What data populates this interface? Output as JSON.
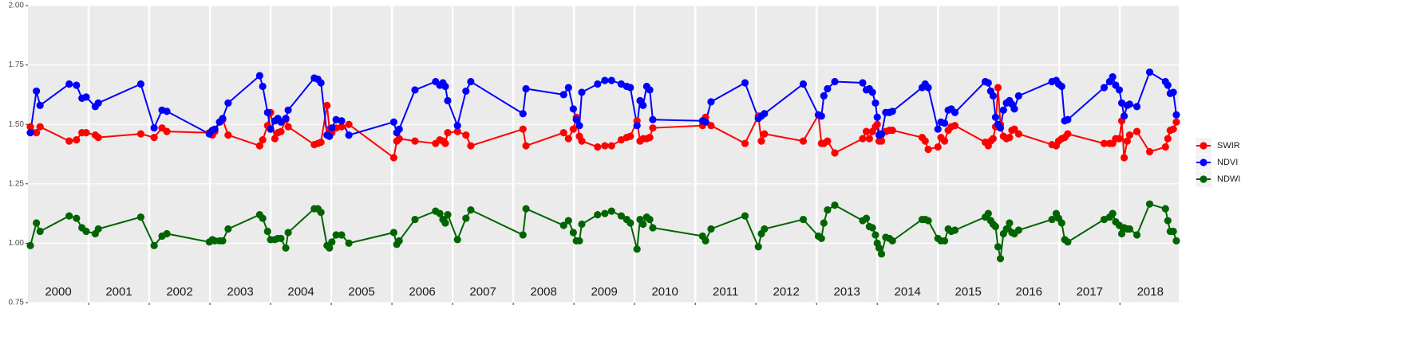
{
  "chart_data": {
    "type": "line",
    "x": [
      2000.04,
      2000.14,
      2000.2,
      2000.68,
      2000.8,
      2000.89,
      2000.96,
      2001.11,
      2001.16,
      2001.86,
      2002.08,
      2002.21,
      2002.29,
      2002.99,
      2003.04,
      2003.08,
      2003.16,
      2003.21,
      2003.3,
      2003.82,
      2003.87,
      2003.95,
      2004.0,
      2004.07,
      2004.12,
      2004.17,
      2004.25,
      2004.29,
      2004.72,
      2004.78,
      2004.83,
      2004.93,
      2004.97,
      2005.01,
      2005.08,
      2005.17,
      2005.29,
      2006.03,
      2006.08,
      2006.12,
      2006.38,
      2006.72,
      2006.79,
      2006.84,
      2006.88,
      2006.92,
      2007.08,
      2007.22,
      2007.3,
      2008.16,
      2008.21,
      2008.83,
      2008.91,
      2008.99,
      2009.04,
      2009.09,
      2009.13,
      2009.39,
      2009.51,
      2009.62,
      2009.78,
      2009.87,
      2009.93,
      2010.04,
      2010.09,
      2010.14,
      2010.2,
      2010.25,
      2010.3,
      2011.12,
      2011.17,
      2011.26,
      2011.82,
      2012.04,
      2012.09,
      2012.14,
      2012.78,
      2013.03,
      2013.08,
      2013.12,
      2013.18,
      2013.3,
      2013.76,
      2013.82,
      2013.87,
      2013.92,
      2013.97,
      2014.0,
      2014.03,
      2014.07,
      2014.14,
      2014.2,
      2014.25,
      2014.74,
      2014.79,
      2014.84,
      2015.0,
      2015.05,
      2015.11,
      2015.17,
      2015.22,
      2015.28,
      2015.78,
      2015.83,
      2015.87,
      2015.91,
      2015.95,
      2015.99,
      2016.03,
      2016.08,
      2016.13,
      2016.18,
      2016.22,
      2016.26,
      2016.33,
      2016.88,
      2016.95,
      2016.99,
      2017.04,
      2017.09,
      2017.14,
      2017.74,
      2017.83,
      2017.88,
      2017.93,
      2017.99,
      2018.03,
      2018.07,
      2018.12,
      2018.16,
      2018.28,
      2018.49,
      2018.75,
      2018.79,
      2018.83,
      2018.88,
      2018.93
    ],
    "series": [
      {
        "name": "SWIR",
        "color": "#ff0000",
        "values": [
          1.49,
          1.465,
          1.49,
          1.43,
          1.435,
          1.465,
          1.465,
          1.455,
          1.445,
          1.46,
          1.445,
          1.485,
          1.47,
          1.465,
          1.455,
          1.47,
          1.51,
          1.52,
          1.455,
          1.41,
          1.435,
          1.495,
          1.55,
          1.44,
          1.465,
          1.47,
          1.52,
          1.49,
          1.415,
          1.42,
          1.425,
          1.58,
          1.48,
          1.465,
          1.485,
          1.49,
          1.5,
          1.36,
          1.43,
          1.44,
          1.43,
          1.42,
          1.435,
          1.43,
          1.42,
          1.465,
          1.47,
          1.455,
          1.41,
          1.48,
          1.41,
          1.465,
          1.44,
          1.48,
          1.53,
          1.45,
          1.43,
          1.405,
          1.41,
          1.41,
          1.435,
          1.445,
          1.45,
          1.515,
          1.43,
          1.44,
          1.44,
          1.445,
          1.485,
          1.495,
          1.53,
          1.495,
          1.42,
          1.535,
          1.43,
          1.46,
          1.43,
          1.54,
          1.42,
          1.42,
          1.43,
          1.38,
          1.44,
          1.47,
          1.44,
          1.47,
          1.49,
          1.5,
          1.43,
          1.43,
          1.47,
          1.475,
          1.475,
          1.445,
          1.43,
          1.395,
          1.405,
          1.445,
          1.43,
          1.475,
          1.49,
          1.495,
          1.425,
          1.41,
          1.43,
          1.44,
          1.49,
          1.655,
          1.5,
          1.45,
          1.44,
          1.445,
          1.475,
          1.48,
          1.46,
          1.415,
          1.41,
          1.43,
          1.44,
          1.445,
          1.46,
          1.42,
          1.42,
          1.42,
          1.44,
          1.44,
          1.515,
          1.36,
          1.43,
          1.455,
          1.47,
          1.385,
          1.405,
          1.44,
          1.475,
          1.48,
          1.51
        ]
      },
      {
        "name": "NDVI",
        "color": "#0000ff",
        "values": [
          1.465,
          1.64,
          1.58,
          1.67,
          1.665,
          1.61,
          1.615,
          1.575,
          1.59,
          1.67,
          1.485,
          1.56,
          1.555,
          1.46,
          1.475,
          1.48,
          1.51,
          1.525,
          1.59,
          1.705,
          1.66,
          1.55,
          1.48,
          1.515,
          1.525,
          1.51,
          1.525,
          1.56,
          1.695,
          1.69,
          1.675,
          1.455,
          1.45,
          1.485,
          1.52,
          1.515,
          1.455,
          1.51,
          1.465,
          1.48,
          1.645,
          1.68,
          1.665,
          1.675,
          1.66,
          1.6,
          1.495,
          1.64,
          1.68,
          1.545,
          1.65,
          1.625,
          1.655,
          1.565,
          1.52,
          1.495,
          1.635,
          1.67,
          1.685,
          1.685,
          1.67,
          1.66,
          1.655,
          1.495,
          1.6,
          1.58,
          1.66,
          1.645,
          1.52,
          1.515,
          1.51,
          1.595,
          1.675,
          1.525,
          1.535,
          1.545,
          1.67,
          1.54,
          1.535,
          1.62,
          1.65,
          1.68,
          1.675,
          1.645,
          1.65,
          1.635,
          1.59,
          1.53,
          1.455,
          1.46,
          1.55,
          1.55,
          1.555,
          1.655,
          1.67,
          1.655,
          1.48,
          1.51,
          1.505,
          1.56,
          1.565,
          1.55,
          1.68,
          1.675,
          1.64,
          1.62,
          1.53,
          1.5,
          1.485,
          1.56,
          1.59,
          1.6,
          1.585,
          1.565,
          1.62,
          1.68,
          1.685,
          1.67,
          1.66,
          1.515,
          1.52,
          1.655,
          1.68,
          1.7,
          1.665,
          1.645,
          1.59,
          1.535,
          1.58,
          1.585,
          1.575,
          1.72,
          1.68,
          1.665,
          1.63,
          1.635,
          1.54
        ]
      },
      {
        "name": "NDWI",
        "color": "#006400",
        "values": [
          0.99,
          1.085,
          1.05,
          1.115,
          1.105,
          1.065,
          1.05,
          1.04,
          1.06,
          1.11,
          0.99,
          1.03,
          1.04,
          1.005,
          1.015,
          1.01,
          1.01,
          1.01,
          1.06,
          1.12,
          1.105,
          1.05,
          1.015,
          1.015,
          1.02,
          1.02,
          0.98,
          1.045,
          1.145,
          1.145,
          1.13,
          0.99,
          0.98,
          1.005,
          1.035,
          1.035,
          1.0,
          1.045,
          0.995,
          1.01,
          1.1,
          1.135,
          1.125,
          1.1,
          1.085,
          1.12,
          1.015,
          1.105,
          1.14,
          1.035,
          1.145,
          1.075,
          1.095,
          1.045,
          1.01,
          1.01,
          1.08,
          1.12,
          1.125,
          1.135,
          1.115,
          1.1,
          1.085,
          0.975,
          1.1,
          1.08,
          1.11,
          1.1,
          1.065,
          1.03,
          1.01,
          1.06,
          1.115,
          0.985,
          1.04,
          1.06,
          1.1,
          1.03,
          1.02,
          1.085,
          1.14,
          1.16,
          1.095,
          1.105,
          1.07,
          1.065,
          1.035,
          1.0,
          0.98,
          0.955,
          1.025,
          1.02,
          1.01,
          1.1,
          1.1,
          1.095,
          1.02,
          1.01,
          1.01,
          1.06,
          1.05,
          1.055,
          1.11,
          1.125,
          1.095,
          1.08,
          1.07,
          0.985,
          0.935,
          1.04,
          1.06,
          1.085,
          1.045,
          1.04,
          1.055,
          1.1,
          1.125,
          1.105,
          1.085,
          1.015,
          1.005,
          1.1,
          1.11,
          1.125,
          1.09,
          1.075,
          1.04,
          1.065,
          1.06,
          1.06,
          1.035,
          1.165,
          1.145,
          1.095,
          1.05,
          1.05,
          1.01
        ]
      }
    ],
    "xlim": [
      2000,
      2018.97
    ],
    "xticks": [
      2001,
      2002,
      2003,
      2004,
      2005,
      2006,
      2007,
      2008,
      2009,
      2010,
      2011,
      2012,
      2013,
      2014,
      2015,
      2016,
      2017,
      2018
    ],
    "year_labels": [
      2000,
      2001,
      2002,
      2003,
      2004,
      2005,
      2006,
      2007,
      2008,
      2009,
      2010,
      2011,
      2012,
      2013,
      2014,
      2015,
      2016,
      2017,
      2018
    ],
    "ylim": [
      0.75,
      2.0
    ],
    "yticks": [
      0.75,
      {
        "value": 1,
        "label": "1.00"
      },
      1.25,
      {
        "value": 1.5,
        "label": "1.50"
      },
      1.75,
      {
        "value": 2,
        "label": "2.00"
      }
    ],
    "grid": true,
    "legend": "right"
  }
}
